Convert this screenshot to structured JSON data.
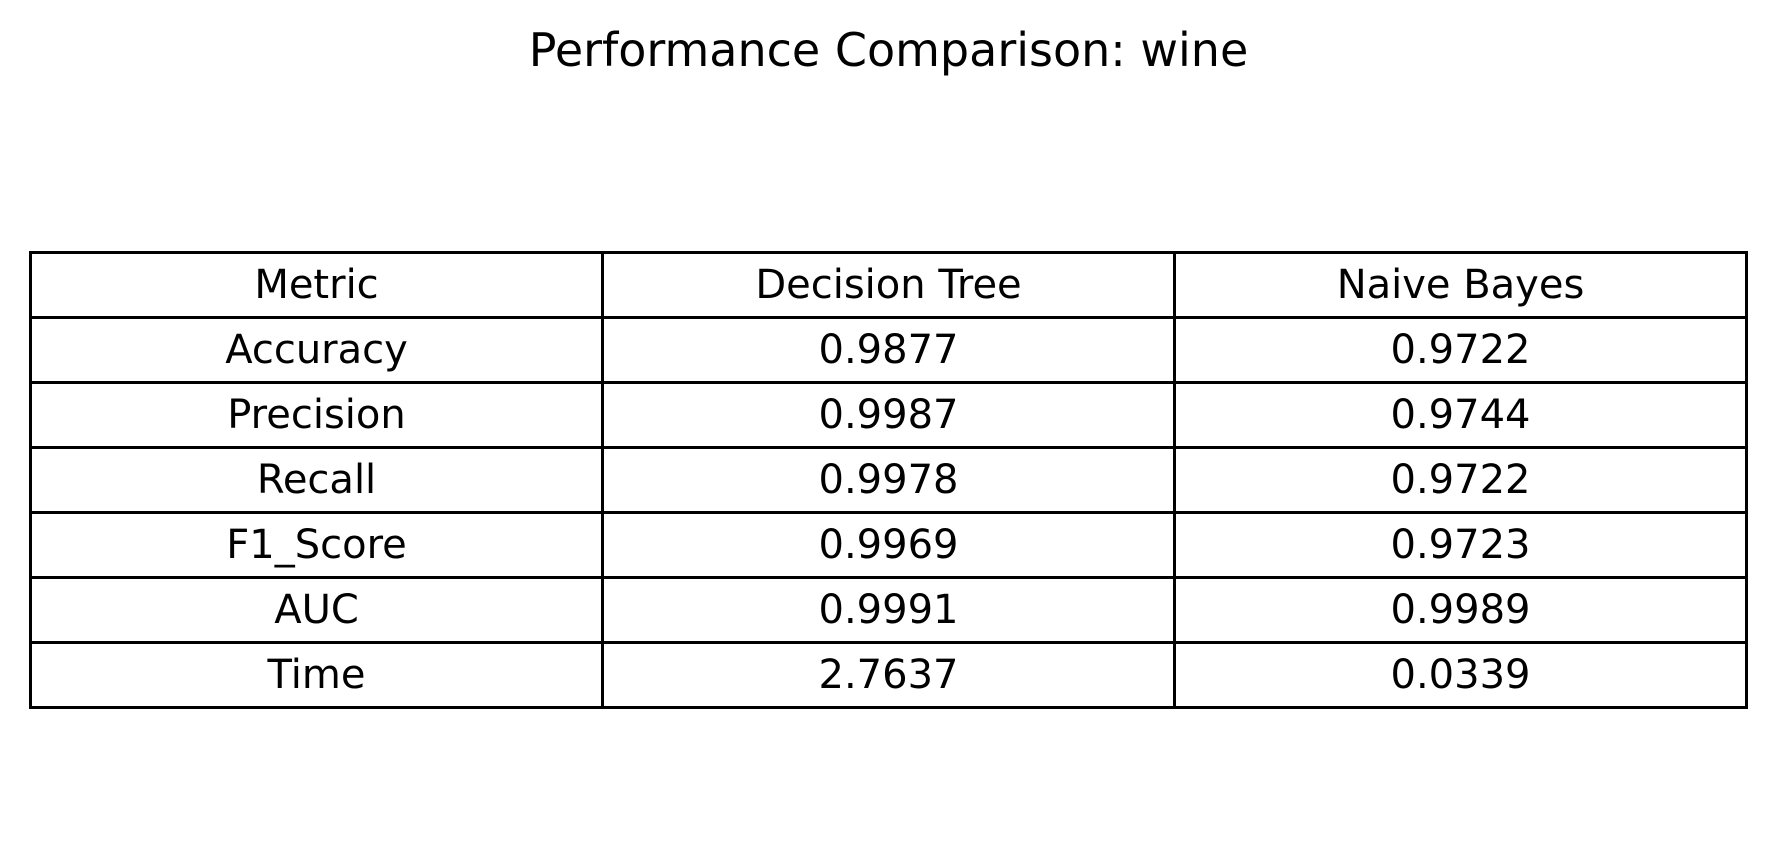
{
  "chart_data": {
    "type": "table",
    "title": "Performance Comparison: wine",
    "columns": [
      "Metric",
      "Decision Tree",
      "Naive Bayes"
    ],
    "rows": [
      [
        "Accuracy",
        "0.9877",
        "0.9722"
      ],
      [
        "Precision",
        "0.9987",
        "0.9744"
      ],
      [
        "Recall",
        "0.9978",
        "0.9722"
      ],
      [
        "F1_Score",
        "0.9969",
        "0.9723"
      ],
      [
        "AUC",
        "0.9991",
        "0.9989"
      ],
      [
        "Time",
        "2.7637",
        "0.0339"
      ]
    ]
  }
}
